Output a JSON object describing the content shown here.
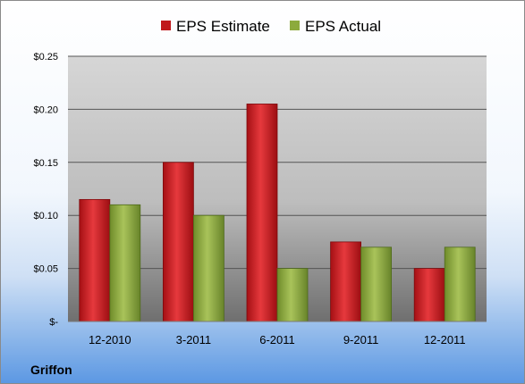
{
  "chart_data": {
    "type": "bar",
    "categories": [
      "12-2010",
      "3-2011",
      "6-2011",
      "9-2011",
      "12-2011"
    ],
    "series": [
      {
        "name": "EPS Estimate",
        "values": [
          0.115,
          0.15,
          0.205,
          0.075,
          0.05
        ],
        "color": "#c0181c"
      },
      {
        "name": "EPS Actual",
        "values": [
          0.11,
          0.1,
          0.05,
          0.07,
          0.07
        ],
        "color": "#8caa3c"
      }
    ],
    "y_ticks": [
      0,
      0.05,
      0.1,
      0.15,
      0.2,
      0.25
    ],
    "y_tick_labels": [
      "$-",
      "$0.05",
      "$0.10",
      "$0.15",
      "$0.20",
      "$0.25"
    ],
    "ylim": [
      0,
      0.25
    ],
    "grid": true,
    "legend_position": "top",
    "xlabel": "",
    "ylabel": "",
    "title": ""
  },
  "company": "Griffon"
}
